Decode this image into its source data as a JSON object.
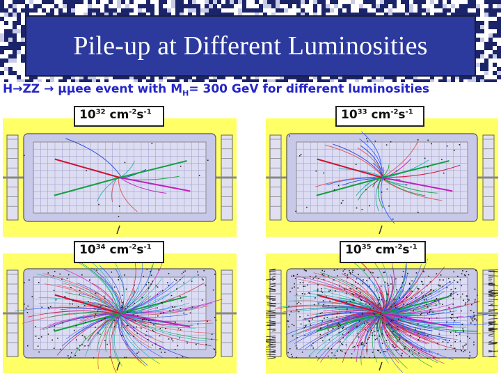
{
  "slide": {
    "title": "Pile-up at Different Luminosities",
    "subtitle_prefix": "H",
    "subtitle_arrow1": "→",
    "subtitle_zz": "ZZ ",
    "subtitle_arrow2": "→",
    "subtitle_mumu": " μμ",
    "subtitle_rest1": "ee event with M",
    "subtitle_msub": "H",
    "subtitle_rest2": "= 300 GeV for different luminosities"
  },
  "panels": [
    {
      "base": "10",
      "exp": "32",
      "unit1": " cm",
      "unit1_exp": "-2",
      "unit2": "s",
      "unit2_exp": "-1",
      "pileup_level": 0
    },
    {
      "base": "10",
      "exp": "33",
      "unit1": " cm",
      "unit1_exp": "-2",
      "unit2": "s",
      "unit2_exp": "-1",
      "pileup_level": 1
    },
    {
      "base": "10",
      "exp": "34",
      "unit1": " cm",
      "unit1_exp": "-2",
      "unit2": "s",
      "unit2_exp": "-1",
      "pileup_level": 2
    },
    {
      "base": "10",
      "exp": "35",
      "unit1": " cm",
      "unit1_exp": "-2",
      "unit2": "s",
      "unit2_exp": "-1",
      "pileup_level": 3
    }
  ],
  "colors": {
    "title_bg": "#2c3a9e",
    "panel_bg": "#ffff66",
    "detector": "#c8c8e8",
    "subtitle": "#2424c8"
  }
}
